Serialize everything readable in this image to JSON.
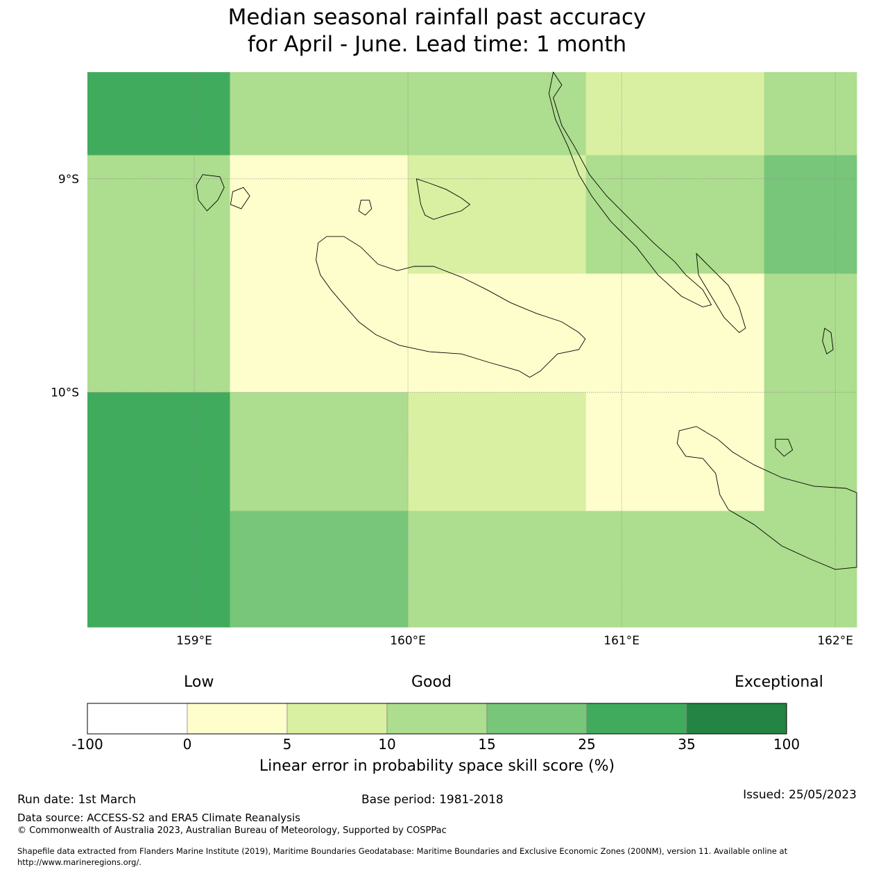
{
  "title_lines": [
    "Median seasonal rainfall past accuracy",
    "for April - June. Lead time: 1 month"
  ],
  "map": {
    "lon_range": [
      158.5,
      162.1
    ],
    "lat_range": [
      -11.1,
      -8.5
    ],
    "lon_ticks": [
      {
        "value": 159,
        "label": "159°E"
      },
      {
        "value": 160,
        "label": "160°E"
      },
      {
        "value": 161,
        "label": "161°E"
      },
      {
        "value": 162,
        "label": "162°E"
      }
    ],
    "lat_ticks": [
      {
        "value": -9,
        "label": "9°S"
      },
      {
        "value": -10,
        "label": "10°S"
      }
    ],
    "grid_cells": [
      {
        "lon0": 158.5,
        "lon1": 159.167,
        "lat0": -8.889,
        "lat1": -8.5,
        "category": 5
      },
      {
        "lon0": 159.167,
        "lon1": 160.833,
        "lat0": -8.889,
        "lat1": -8.5,
        "category": 3
      },
      {
        "lon0": 160.833,
        "lon1": 161.667,
        "lat0": -8.889,
        "lat1": -8.5,
        "category": 2
      },
      {
        "lon0": 161.667,
        "lon1": 162.1,
        "lat0": -8.889,
        "lat1": -8.5,
        "category": 3
      },
      {
        "lon0": 158.5,
        "lon1": 159.167,
        "lat0": -10.0,
        "lat1": -8.889,
        "category": 3
      },
      {
        "lon0": 159.167,
        "lon1": 160.0,
        "lat0": -10.0,
        "lat1": -8.889,
        "category": 1
      },
      {
        "lon0": 160.0,
        "lon1": 160.833,
        "lat0": -9.444,
        "lat1": -8.889,
        "category": 2
      },
      {
        "lon0": 160.0,
        "lon1": 160.833,
        "lat0": -10.0,
        "lat1": -9.444,
        "category": 1
      },
      {
        "lon0": 160.833,
        "lon1": 161.667,
        "lat0": -9.444,
        "lat1": -8.889,
        "category": 3
      },
      {
        "lon0": 160.833,
        "lon1": 161.667,
        "lat0": -10.0,
        "lat1": -9.444,
        "category": 1
      },
      {
        "lon0": 161.667,
        "lon1": 162.1,
        "lat0": -9.444,
        "lat1": -8.889,
        "category": 4
      },
      {
        "lon0": 161.667,
        "lon1": 162.1,
        "lat0": -10.0,
        "lat1": -9.444,
        "category": 3
      },
      {
        "lon0": 158.5,
        "lon1": 159.167,
        "lat0": -11.1,
        "lat1": -10.0,
        "category": 5
      },
      {
        "lon0": 159.167,
        "lon1": 160.0,
        "lat0": -10.556,
        "lat1": -10.0,
        "category": 3
      },
      {
        "lon0": 160.0,
        "lon1": 160.833,
        "lat0": -10.556,
        "lat1": -10.0,
        "category": 2
      },
      {
        "lon0": 160.833,
        "lon1": 161.667,
        "lat0": -10.556,
        "lat1": -10.0,
        "category": 1
      },
      {
        "lon0": 161.667,
        "lon1": 162.1,
        "lat0": -10.556,
        "lat1": -10.0,
        "category": 3
      },
      {
        "lon0": 159.167,
        "lon1": 160.0,
        "lat0": -11.1,
        "lat1": -10.556,
        "category": 4
      },
      {
        "lon0": 160.0,
        "lon1": 162.1,
        "lat0": -11.1,
        "lat1": -10.556,
        "category": 3
      }
    ],
    "coastlines": [
      {
        "name": "guadalcanal",
        "points": [
          [
            159.58,
            -9.3
          ],
          [
            159.62,
            -9.27
          ],
          [
            159.7,
            -9.27
          ],
          [
            159.78,
            -9.32
          ],
          [
            159.86,
            -9.4
          ],
          [
            159.95,
            -9.43
          ],
          [
            160.03,
            -9.41
          ],
          [
            160.12,
            -9.41
          ],
          [
            160.25,
            -9.46
          ],
          [
            160.37,
            -9.52
          ],
          [
            160.48,
            -9.58
          ],
          [
            160.6,
            -9.63
          ],
          [
            160.72,
            -9.67
          ],
          [
            160.8,
            -9.72
          ],
          [
            160.83,
            -9.75
          ],
          [
            160.8,
            -9.8
          ],
          [
            160.7,
            -9.82
          ],
          [
            160.62,
            -9.9
          ],
          [
            160.57,
            -9.93
          ],
          [
            160.52,
            -9.9
          ],
          [
            160.45,
            -9.88
          ],
          [
            160.38,
            -9.86
          ],
          [
            160.25,
            -9.82
          ],
          [
            160.1,
            -9.81
          ],
          [
            159.96,
            -9.78
          ],
          [
            159.85,
            -9.73
          ],
          [
            159.77,
            -9.67
          ],
          [
            159.7,
            -9.59
          ],
          [
            159.64,
            -9.52
          ],
          [
            159.59,
            -9.45
          ],
          [
            159.57,
            -9.38
          ]
        ]
      },
      {
        "name": "savo",
        "points": [
          [
            159.78,
            -9.1
          ],
          [
            159.82,
            -9.1
          ],
          [
            159.83,
            -9.14
          ],
          [
            159.8,
            -9.17
          ],
          [
            159.77,
            -9.15
          ]
        ]
      },
      {
        "name": "nggela",
        "points": [
          [
            160.04,
            -9.0
          ],
          [
            160.1,
            -9.02
          ],
          [
            160.18,
            -9.05
          ],
          [
            160.25,
            -9.09
          ],
          [
            160.29,
            -9.12
          ],
          [
            160.25,
            -9.15
          ],
          [
            160.18,
            -9.17
          ],
          [
            160.12,
            -9.19
          ],
          [
            160.08,
            -9.17
          ],
          [
            160.06,
            -9.12
          ],
          [
            160.05,
            -9.06
          ]
        ]
      },
      {
        "name": "russell",
        "points": [
          [
            159.04,
            -8.98
          ],
          [
            159.12,
            -8.99
          ],
          [
            159.14,
            -9.04
          ],
          [
            159.11,
            -9.1
          ],
          [
            159.06,
            -9.15
          ],
          [
            159.02,
            -9.1
          ],
          [
            159.01,
            -9.03
          ]
        ]
      },
      {
        "name": "russell-small",
        "points": [
          [
            159.18,
            -9.06
          ],
          [
            159.23,
            -9.04
          ],
          [
            159.26,
            -9.08
          ],
          [
            159.22,
            -9.14
          ],
          [
            159.17,
            -9.12
          ]
        ]
      },
      {
        "name": "malaita",
        "points": [
          [
            160.68,
            -8.5
          ],
          [
            160.72,
            -8.56
          ],
          [
            160.68,
            -8.62
          ],
          [
            160.72,
            -8.75
          ],
          [
            160.78,
            -8.85
          ],
          [
            160.85,
            -8.98
          ],
          [
            160.93,
            -9.08
          ],
          [
            161.05,
            -9.2
          ],
          [
            161.15,
            -9.3
          ],
          [
            161.25,
            -9.39
          ],
          [
            161.3,
            -9.45
          ],
          [
            161.38,
            -9.52
          ],
          [
            161.42,
            -9.59
          ],
          [
            161.38,
            -9.6
          ],
          [
            161.28,
            -9.55
          ],
          [
            161.17,
            -9.45
          ],
          [
            161.07,
            -9.32
          ],
          [
            160.95,
            -9.2
          ],
          [
            160.86,
            -9.08
          ],
          [
            160.8,
            -8.98
          ],
          [
            160.75,
            -8.85
          ],
          [
            160.69,
            -8.72
          ],
          [
            160.66,
            -8.6
          ]
        ]
      },
      {
        "name": "small-malaita",
        "points": [
          [
            161.35,
            -9.35
          ],
          [
            161.42,
            -9.42
          ],
          [
            161.5,
            -9.5
          ],
          [
            161.55,
            -9.6
          ],
          [
            161.58,
            -9.7
          ],
          [
            161.55,
            -9.72
          ],
          [
            161.48,
            -9.65
          ],
          [
            161.42,
            -9.55
          ],
          [
            161.36,
            -9.45
          ]
        ]
      },
      {
        "name": "ulawa",
        "points": [
          [
            161.95,
            -9.7
          ],
          [
            161.98,
            -9.72
          ],
          [
            161.99,
            -9.8
          ],
          [
            161.96,
            -9.82
          ],
          [
            161.94,
            -9.76
          ]
        ]
      },
      {
        "name": "makira",
        "points": [
          [
            161.27,
            -10.18
          ],
          [
            161.35,
            -10.16
          ],
          [
            161.45,
            -10.22
          ],
          [
            161.52,
            -10.28
          ],
          [
            161.62,
            -10.34
          ],
          [
            161.75,
            -10.4
          ],
          [
            161.9,
            -10.44
          ],
          [
            162.05,
            -10.45
          ],
          [
            162.1,
            -10.47
          ],
          [
            162.1,
            -10.82
          ],
          [
            162.0,
            -10.83
          ],
          [
            161.88,
            -10.78
          ],
          [
            161.75,
            -10.72
          ],
          [
            161.62,
            -10.62
          ],
          [
            161.5,
            -10.55
          ],
          [
            161.46,
            -10.48
          ],
          [
            161.44,
            -10.38
          ],
          [
            161.38,
            -10.31
          ],
          [
            161.3,
            -10.3
          ],
          [
            161.26,
            -10.24
          ]
        ]
      },
      {
        "name": "ugi",
        "points": [
          [
            161.72,
            -10.22
          ],
          [
            161.78,
            -10.22
          ],
          [
            161.8,
            -10.27
          ],
          [
            161.76,
            -10.3
          ],
          [
            161.72,
            -10.26
          ]
        ]
      }
    ]
  },
  "colors": [
    "#ffffff",
    "#fefecc",
    "#d9efa2",
    "#addd8e",
    "#78c679",
    "#41ab5d",
    "#238443"
  ],
  "colorbar": {
    "categories": [
      {
        "label": "Low",
        "left": 265
      },
      {
        "label": "Good",
        "left": 593
      },
      {
        "label": "Exceptional",
        "left": 1059
      }
    ],
    "ticks": [
      "-100",
      "0",
      "5",
      "10",
      "15",
      "25",
      "35",
      "100"
    ],
    "label": "Linear error in probability space skill score (%)"
  },
  "footer": {
    "run_date": "Run date: 1st March",
    "base_period": "Base period: 1981-2018",
    "issued": "Issued: 25/05/2023",
    "data_source": "Data source: ACCESS-S2 and ERA5 Climate Reanalysis",
    "copyright": "© Commonwealth of Australia 2023, Australian Bureau of Meteorology, Supported by COSPPac",
    "shapefile_1": "Shapefile data extracted from Flanders Marine Institute (2019), Maritime Boundaries Geodatabase: Maritime Boundaries and Exclusive Economic Zones (200NM), version 11. Available online at",
    "shapefile_2": "http://www.marineregions.org/."
  }
}
